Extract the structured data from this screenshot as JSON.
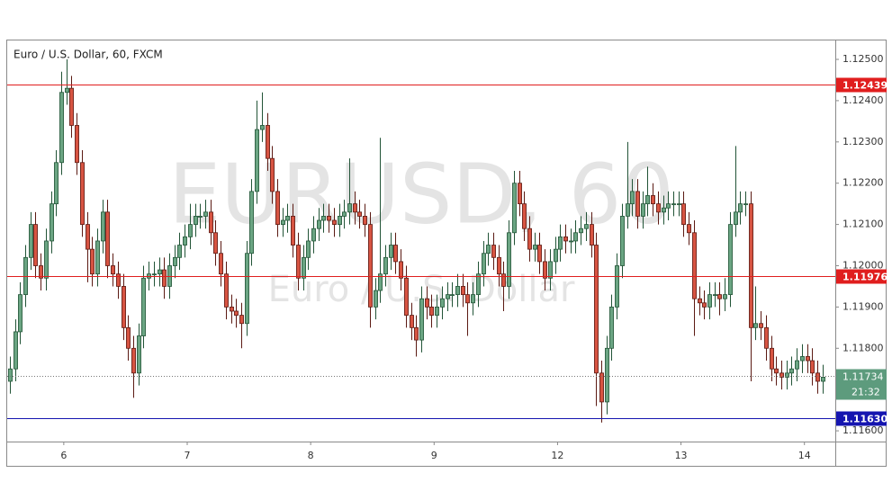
{
  "chart_data": {
    "type": "candlestick",
    "title": "Euro / U.S. Dollar, 60, FXCM",
    "watermark": [
      "EURUSD, 60",
      "Euro / U.S. Dollar"
    ],
    "up_color": "#6ba583",
    "down_color": "#d75442",
    "up_border": "#225437",
    "down_border": "#5b1a13",
    "xlim": [
      -0.5,
      160.5
    ],
    "xticks": [
      {
        "value": 10.5,
        "label": "6"
      },
      {
        "value": 34.5,
        "label": "7"
      },
      {
        "value": 58.5,
        "label": "8"
      },
      {
        "value": 82.5,
        "label": "9"
      },
      {
        "value": 106.5,
        "label": "12"
      },
      {
        "value": 130.5,
        "label": "13"
      },
      {
        "value": 154.5,
        "label": "14"
      }
    ],
    "ylim": [
      1.11574,
      1.12548
    ],
    "yticks": [
      {
        "value": 1.125,
        "label": "1.12500"
      },
      {
        "value": 1.124,
        "label": "1.12400"
      },
      {
        "value": 1.123,
        "label": "1.12300"
      },
      {
        "value": 1.122,
        "label": "1.12200"
      },
      {
        "value": 1.121,
        "label": "1.12100"
      },
      {
        "value": 1.12,
        "label": "1.12000"
      },
      {
        "value": 1.119,
        "label": "1.11900"
      },
      {
        "value": 1.118,
        "label": "1.11800"
      },
      {
        "value": 1.116,
        "label": "1.11600"
      }
    ],
    "levels": [
      {
        "value": 1.12439,
        "color": "#e01e1e"
      },
      {
        "value": 1.11976,
        "color": "#e01e1e"
      },
      {
        "value": 1.1163,
        "label": "1.11630",
        "color": "#1515b0"
      }
    ],
    "last": {
      "value": 1.11734,
      "color": "#5d9b7d"
    },
    "countdown": "21:32",
    "ohlc": [
      [
        1.1172,
        1.1178,
        1.1169,
        1.1175
      ],
      [
        1.1175,
        1.1187,
        1.1172,
        1.1184
      ],
      [
        1.1184,
        1.1196,
        1.1181,
        1.1193
      ],
      [
        1.1193,
        1.1205,
        1.119,
        1.1202
      ],
      [
        1.1202,
        1.1213,
        1.1199,
        1.121
      ],
      [
        1.121,
        1.1213,
        1.1197,
        1.12
      ],
      [
        1.12,
        1.1203,
        1.1194,
        1.1197
      ],
      [
        1.1197,
        1.1209,
        1.1194,
        1.1206
      ],
      [
        1.1206,
        1.1218,
        1.1203,
        1.1215
      ],
      [
        1.1215,
        1.1228,
        1.1212,
        1.1225
      ],
      [
        1.1225,
        1.1247,
        1.1222,
        1.1242
      ],
      [
        1.1242,
        1.125,
        1.1239,
        1.1243
      ],
      [
        1.1243,
        1.1246,
        1.1231,
        1.1234
      ],
      [
        1.1234,
        1.1237,
        1.1222,
        1.1225
      ],
      [
        1.1225,
        1.1228,
        1.1207,
        1.121
      ],
      [
        1.121,
        1.1213,
        1.1196,
        1.1204
      ],
      [
        1.1204,
        1.1207,
        1.1195,
        1.1198
      ],
      [
        1.1198,
        1.1209,
        1.1195,
        1.1206
      ],
      [
        1.1206,
        1.1216,
        1.1203,
        1.1213
      ],
      [
        1.1213,
        1.1216,
        1.1197,
        1.12
      ],
      [
        1.12,
        1.1203,
        1.1195,
        1.1198
      ],
      [
        1.1198,
        1.1201,
        1.1192,
        1.1195
      ],
      [
        1.1195,
        1.1198,
        1.1182,
        1.1185
      ],
      [
        1.1185,
        1.1188,
        1.1177,
        1.118
      ],
      [
        1.118,
        1.1183,
        1.1168,
        1.1174
      ],
      [
        1.1174,
        1.1186,
        1.1171,
        1.1183
      ],
      [
        1.1183,
        1.12,
        1.118,
        1.1197
      ],
      [
        1.1197,
        1.1201,
        1.1194,
        1.1198
      ],
      [
        1.1198,
        1.1201,
        1.1195,
        1.1198
      ],
      [
        1.1198,
        1.1202,
        1.1195,
        1.1199
      ],
      [
        1.1199,
        1.1202,
        1.1192,
        1.1195
      ],
      [
        1.1195,
        1.1203,
        1.1192,
        1.12
      ],
      [
        1.12,
        1.1205,
        1.1197,
        1.1202
      ],
      [
        1.1202,
        1.1208,
        1.1199,
        1.1205
      ],
      [
        1.1205,
        1.121,
        1.1202,
        1.1207
      ],
      [
        1.1207,
        1.1215,
        1.1204,
        1.121
      ],
      [
        1.121,
        1.1215,
        1.1207,
        1.1212
      ],
      [
        1.1212,
        1.1215,
        1.1209,
        1.1212
      ],
      [
        1.1212,
        1.1216,
        1.1209,
        1.1213
      ],
      [
        1.1213,
        1.1216,
        1.1205,
        1.1208
      ],
      [
        1.1208,
        1.1211,
        1.12,
        1.1203
      ],
      [
        1.1203,
        1.1206,
        1.1195,
        1.1198
      ],
      [
        1.1198,
        1.1201,
        1.1187,
        1.119
      ],
      [
        1.119,
        1.1193,
        1.1186,
        1.1189
      ],
      [
        1.1189,
        1.1192,
        1.1185,
        1.1188
      ],
      [
        1.1188,
        1.1191,
        1.118,
        1.1186
      ],
      [
        1.1186,
        1.1206,
        1.1183,
        1.1203
      ],
      [
        1.1203,
        1.1221,
        1.12,
        1.1218
      ],
      [
        1.1218,
        1.124,
        1.1215,
        1.1233
      ],
      [
        1.1233,
        1.1242,
        1.123,
        1.1234
      ],
      [
        1.1234,
        1.1237,
        1.1223,
        1.1226
      ],
      [
        1.1226,
        1.1229,
        1.1215,
        1.1218
      ],
      [
        1.1218,
        1.1221,
        1.1207,
        1.121
      ],
      [
        1.121,
        1.1214,
        1.1207,
        1.1211
      ],
      [
        1.1211,
        1.1215,
        1.1208,
        1.1212
      ],
      [
        1.1212,
        1.1215,
        1.1202,
        1.1205
      ],
      [
        1.1205,
        1.1208,
        1.1194,
        1.1197
      ],
      [
        1.1197,
        1.1205,
        1.1194,
        1.1202
      ],
      [
        1.1202,
        1.1209,
        1.1199,
        1.1206
      ],
      [
        1.1206,
        1.1212,
        1.1203,
        1.1209
      ],
      [
        1.1209,
        1.1214,
        1.1206,
        1.1211
      ],
      [
        1.1211,
        1.1215,
        1.1208,
        1.1212
      ],
      [
        1.1212,
        1.1215,
        1.1208,
        1.1211
      ],
      [
        1.1211,
        1.1214,
        1.1207,
        1.121
      ],
      [
        1.121,
        1.1215,
        1.1207,
        1.1212
      ],
      [
        1.1212,
        1.1216,
        1.1209,
        1.1213
      ],
      [
        1.1213,
        1.1226,
        1.121,
        1.1215
      ],
      [
        1.1215,
        1.1218,
        1.121,
        1.1213
      ],
      [
        1.1213,
        1.1216,
        1.1209,
        1.1212
      ],
      [
        1.1212,
        1.1215,
        1.1207,
        1.121
      ],
      [
        1.121,
        1.1213,
        1.1185,
        1.119
      ],
      [
        1.119,
        1.1197,
        1.1187,
        1.1194
      ],
      [
        1.1194,
        1.1231,
        1.1191,
        1.1198
      ],
      [
        1.1198,
        1.1205,
        1.1195,
        1.1202
      ],
      [
        1.1202,
        1.1208,
        1.1199,
        1.1205
      ],
      [
        1.1205,
        1.1208,
        1.1198,
        1.1201
      ],
      [
        1.1201,
        1.1204,
        1.1194,
        1.1197
      ],
      [
        1.1197,
        1.12,
        1.1185,
        1.1188
      ],
      [
        1.1188,
        1.1191,
        1.1182,
        1.1185
      ],
      [
        1.1185,
        1.1188,
        1.1178,
        1.1182
      ],
      [
        1.1182,
        1.1195,
        1.1179,
        1.1192
      ],
      [
        1.1192,
        1.1195,
        1.1187,
        1.119
      ],
      [
        1.119,
        1.1193,
        1.1185,
        1.1188
      ],
      [
        1.1188,
        1.1193,
        1.1185,
        1.119
      ],
      [
        1.119,
        1.1195,
        1.1187,
        1.1192
      ],
      [
        1.1192,
        1.1196,
        1.1189,
        1.1193
      ],
      [
        1.1193,
        1.1196,
        1.119,
        1.1193
      ],
      [
        1.1193,
        1.1198,
        1.119,
        1.1195
      ],
      [
        1.1195,
        1.1198,
        1.119,
        1.1193
      ],
      [
        1.1193,
        1.1196,
        1.1183,
        1.1191
      ],
      [
        1.1191,
        1.1196,
        1.1188,
        1.1193
      ],
      [
        1.1193,
        1.1201,
        1.119,
        1.1198
      ],
      [
        1.1198,
        1.1206,
        1.1195,
        1.1203
      ],
      [
        1.1203,
        1.1208,
        1.12,
        1.1205
      ],
      [
        1.1205,
        1.1208,
        1.1199,
        1.1202
      ],
      [
        1.1202,
        1.1205,
        1.1195,
        1.1198
      ],
      [
        1.1198,
        1.1201,
        1.1189,
        1.1195
      ],
      [
        1.1195,
        1.1211,
        1.1192,
        1.1208
      ],
      [
        1.1208,
        1.1223,
        1.1205,
        1.122
      ],
      [
        1.122,
        1.1223,
        1.1212,
        1.1215
      ],
      [
        1.1215,
        1.1218,
        1.1206,
        1.1209
      ],
      [
        1.1209,
        1.1212,
        1.1201,
        1.1204
      ],
      [
        1.1204,
        1.1208,
        1.1201,
        1.1205
      ],
      [
        1.1205,
        1.1208,
        1.1198,
        1.1201
      ],
      [
        1.1201,
        1.1204,
        1.1194,
        1.1197
      ],
      [
        1.1197,
        1.1204,
        1.1194,
        1.1201
      ],
      [
        1.1201,
        1.1207,
        1.1198,
        1.1204
      ],
      [
        1.1204,
        1.121,
        1.1201,
        1.1207
      ],
      [
        1.1207,
        1.121,
        1.1203,
        1.1206
      ],
      [
        1.1206,
        1.1209,
        1.1203,
        1.1206
      ],
      [
        1.1206,
        1.1211,
        1.1203,
        1.1208
      ],
      [
        1.1208,
        1.1212,
        1.1205,
        1.1209
      ],
      [
        1.1209,
        1.1213,
        1.1206,
        1.121
      ],
      [
        1.121,
        1.1213,
        1.1202,
        1.1205
      ],
      [
        1.1205,
        1.1208,
        1.1166,
        1.1174
      ],
      [
        1.1174,
        1.1177,
        1.1162,
        1.1167
      ],
      [
        1.1167,
        1.1183,
        1.1164,
        1.118
      ],
      [
        1.118,
        1.1193,
        1.1177,
        1.119
      ],
      [
        1.119,
        1.1203,
        1.1187,
        1.12
      ],
      [
        1.12,
        1.1215,
        1.1197,
        1.1212
      ],
      [
        1.1212,
        1.123,
        1.1209,
        1.1215
      ],
      [
        1.1215,
        1.1221,
        1.1212,
        1.1218
      ],
      [
        1.1218,
        1.1221,
        1.1209,
        1.1212
      ],
      [
        1.1212,
        1.1218,
        1.1209,
        1.1215
      ],
      [
        1.1215,
        1.1224,
        1.1212,
        1.1217
      ],
      [
        1.1217,
        1.122,
        1.1212,
        1.1215
      ],
      [
        1.1215,
        1.1218,
        1.121,
        1.1213
      ],
      [
        1.1213,
        1.1217,
        1.121,
        1.1214
      ],
      [
        1.1214,
        1.1218,
        1.1211,
        1.1215
      ],
      [
        1.1215,
        1.1218,
        1.1212,
        1.1215
      ],
      [
        1.1215,
        1.1218,
        1.1212,
        1.1215
      ],
      [
        1.1215,
        1.1218,
        1.1207,
        1.121
      ],
      [
        1.121,
        1.1213,
        1.1205,
        1.1208
      ],
      [
        1.1208,
        1.1211,
        1.1183,
        1.1192
      ],
      [
        1.1192,
        1.1195,
        1.1188,
        1.1191
      ],
      [
        1.1191,
        1.1194,
        1.1187,
        1.119
      ],
      [
        1.119,
        1.1196,
        1.1187,
        1.1193
      ],
      [
        1.1193,
        1.1196,
        1.119,
        1.1193
      ],
      [
        1.1193,
        1.1196,
        1.1188,
        1.1192
      ],
      [
        1.1192,
        1.1197,
        1.1189,
        1.1193
      ],
      [
        1.1193,
        1.1213,
        1.119,
        1.121
      ],
      [
        1.121,
        1.1229,
        1.1207,
        1.1213
      ],
      [
        1.1213,
        1.1218,
        1.121,
        1.1215
      ],
      [
        1.1215,
        1.1218,
        1.1212,
        1.1215
      ],
      [
        1.1215,
        1.1218,
        1.1172,
        1.1185
      ],
      [
        1.1185,
        1.1195,
        1.1182,
        1.1186
      ],
      [
        1.1186,
        1.1189,
        1.1182,
        1.1185
      ],
      [
        1.1185,
        1.1188,
        1.1177,
        1.118
      ],
      [
        1.118,
        1.1183,
        1.1172,
        1.1175
      ],
      [
        1.1175,
        1.1178,
        1.1171,
        1.1174
      ],
      [
        1.1174,
        1.1177,
        1.117,
        1.1173
      ],
      [
        1.1173,
        1.1177,
        1.117,
        1.1174
      ],
      [
        1.1174,
        1.1178,
        1.1171,
        1.1175
      ],
      [
        1.1175,
        1.118,
        1.1172,
        1.1177
      ],
      [
        1.1177,
        1.1181,
        1.1174,
        1.1178
      ],
      [
        1.1178,
        1.1181,
        1.1174,
        1.1177
      ],
      [
        1.1177,
        1.118,
        1.1171,
        1.1174
      ],
      [
        1.1174,
        1.1177,
        1.1169,
        1.1172
      ],
      [
        1.1172,
        1.1176,
        1.1169,
        1.1173
      ]
    ]
  }
}
